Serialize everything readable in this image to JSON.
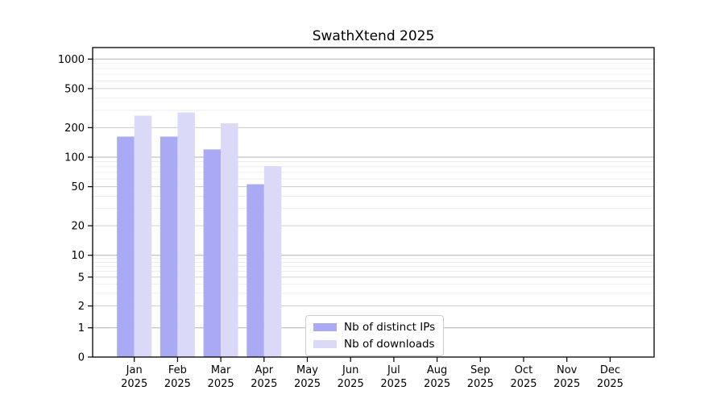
{
  "chart_data": {
    "type": "bar",
    "title": "SwathXtend 2025",
    "months": [
      "Jan",
      "Feb",
      "Mar",
      "Apr",
      "May",
      "Jun",
      "Jul",
      "Aug",
      "Sep",
      "Oct",
      "Nov",
      "Dec"
    ],
    "year_label": "2025",
    "series": [
      {
        "name": "Nb of distinct IPs",
        "color": "#a9a9f4",
        "values": [
          162,
          162,
          120,
          53,
          null,
          null,
          null,
          null,
          null,
          null,
          null,
          null
        ]
      },
      {
        "name": "Nb of downloads",
        "color": "#dadaf8",
        "values": [
          265,
          285,
          222,
          81,
          null,
          null,
          null,
          null,
          null,
          null,
          null,
          null
        ]
      }
    ],
    "y_ticks": [
      0,
      1,
      2,
      5,
      10,
      20,
      50,
      100,
      200,
      500,
      1000
    ],
    "y_axis_scale": "symlog",
    "y_range": [
      0,
      1000
    ],
    "grid": "horizontal major and minor",
    "legend_position": "bottom-center inside plot",
    "colors": {
      "axis": "#000000",
      "grid_major": "#b2b2b2",
      "grid_labeled": "#c9c9c9",
      "grid_minor": "#eaeaea",
      "background": "#ffffff"
    }
  }
}
